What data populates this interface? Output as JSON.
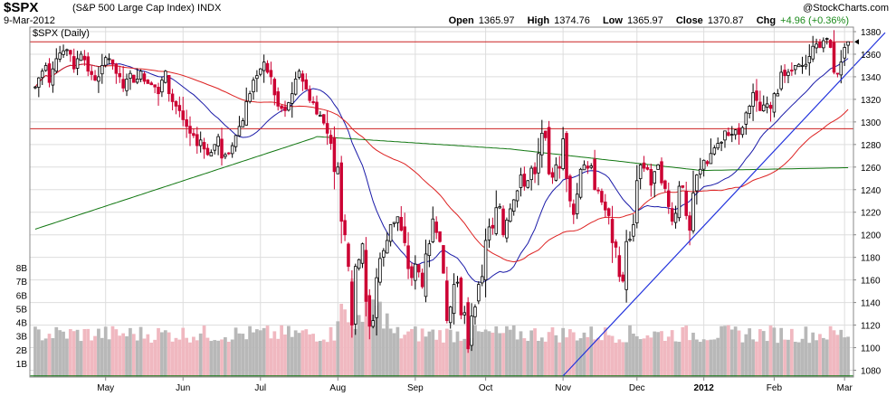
{
  "header": {
    "symbol": "$SPX",
    "name": "(S&P 500 Large Cap Index)",
    "exchange": "INDX",
    "date": "9-Mar-2012",
    "source": "@StockCharts.com",
    "open_label": "Open",
    "open": "1365.97",
    "high_label": "High",
    "high": "1374.76",
    "low_label": "Low",
    "low": "1365.97",
    "close_label": "Close",
    "close": "1370.87",
    "chg_label": "Chg",
    "chg": "+4.96 (+0.36%)"
  },
  "legend_label": "$SPX (Daily)",
  "colors": {
    "up": "#000000",
    "down": "#cc0033",
    "ma_short": "#1a1aa8",
    "ma_mid": "#dd2222",
    "ma_long": "#117711",
    "trend": "#2233dd",
    "hline_red": "#cc2222",
    "hline_green": "#117711",
    "vol_up": "#b8b8b8",
    "vol_down": "#f0b8c0",
    "grid": "#dddddd"
  },
  "chart_data": {
    "type": "candlestick",
    "title": "$SPX (Daily)",
    "y_axis": {
      "ticks": [
        1080,
        1100,
        1120,
        1140,
        1160,
        1180,
        1200,
        1220,
        1240,
        1260,
        1280,
        1300,
        1320,
        1340,
        1360,
        1380
      ],
      "range": [
        1074,
        1384
      ],
      "side": "right"
    },
    "volume_axis": {
      "ticks": [
        "1B",
        "2B",
        "3B",
        "4B",
        "5B",
        "6B",
        "7B",
        "8B"
      ],
      "range_billions": [
        0,
        8
      ]
    },
    "x_axis": {
      "labels": [
        "May",
        "Jun",
        "Jul",
        "Aug",
        "Sep",
        "Oct",
        "Nov",
        "Dec",
        "2012",
        "Feb",
        "Mar"
      ],
      "bold_labels": [
        "2012"
      ],
      "label_positions_bar_index": [
        20,
        42,
        64,
        86,
        108,
        128,
        150,
        171,
        190,
        210,
        230
      ]
    },
    "closes": [
      1331,
      1339,
      1345,
      1350,
      1335,
      1347,
      1356,
      1361,
      1363,
      1364,
      1360,
      1347,
      1356,
      1360,
      1355,
      1345,
      1342,
      1337,
      1340,
      1350,
      1357,
      1356,
      1351,
      1343,
      1340,
      1330,
      1338,
      1343,
      1335,
      1338,
      1345,
      1336,
      1334,
      1333,
      1331,
      1325,
      1337,
      1345,
      1325,
      1318,
      1314,
      1310,
      1302,
      1296,
      1290,
      1288,
      1279,
      1284,
      1276,
      1271,
      1273,
      1280,
      1287,
      1268,
      1271,
      1272,
      1279,
      1288,
      1296,
      1301,
      1318,
      1325,
      1337,
      1341,
      1347,
      1353,
      1344,
      1340,
      1324,
      1314,
      1312,
      1310,
      1317,
      1325,
      1338,
      1345,
      1336,
      1329,
      1319,
      1317,
      1307,
      1306,
      1299,
      1290,
      1281,
      1256,
      1260,
      1212,
      1200,
      1172,
      1120,
      1172,
      1178,
      1192,
      1141,
      1119,
      1124,
      1162,
      1179,
      1186,
      1195,
      1209,
      1211,
      1216,
      1204,
      1193,
      1170,
      1162,
      1174,
      1167,
      1154,
      1183,
      1192,
      1214,
      1202,
      1194,
      1166,
      1124,
      1136,
      1156,
      1158,
      1129,
      1131,
      1099,
      1128,
      1136,
      1156,
      1163,
      1195,
      1207,
      1206,
      1224,
      1225,
      1200,
      1213,
      1223,
      1231,
      1239,
      1253,
      1243,
      1248,
      1259,
      1254,
      1272,
      1290,
      1286,
      1254,
      1251,
      1262,
      1259,
      1285,
      1250,
      1230,
      1218,
      1236,
      1258,
      1262,
      1259,
      1261,
      1240,
      1239,
      1229,
      1222,
      1217,
      1193,
      1189,
      1163,
      1159,
      1194,
      1196,
      1209,
      1248,
      1262,
      1259,
      1258,
      1244,
      1256,
      1262,
      1246,
      1241,
      1225,
      1212,
      1219,
      1243,
      1242,
      1217,
      1204,
      1237,
      1253,
      1258,
      1266,
      1263,
      1272,
      1277,
      1281,
      1282,
      1292,
      1288,
      1289,
      1293,
      1289,
      1295,
      1308,
      1314,
      1326,
      1319,
      1310,
      1315,
      1316,
      1312,
      1325,
      1325,
      1344,
      1341,
      1344,
      1345,
      1350,
      1351,
      1350,
      1351,
      1358,
      1367,
      1369,
      1366,
      1372,
      1374,
      1366,
      1344,
      1343,
      1353,
      1366,
      1371
    ],
    "hlines": [
      {
        "value": 1371,
        "color": "red"
      },
      {
        "value": 1294,
        "color": "red"
      },
      {
        "value": 1075,
        "color": "green"
      }
    ],
    "trendline": [
      {
        "bar": 150,
        "value": 1075
      },
      {
        "bar": 240,
        "value": 1374
      }
    ]
  }
}
